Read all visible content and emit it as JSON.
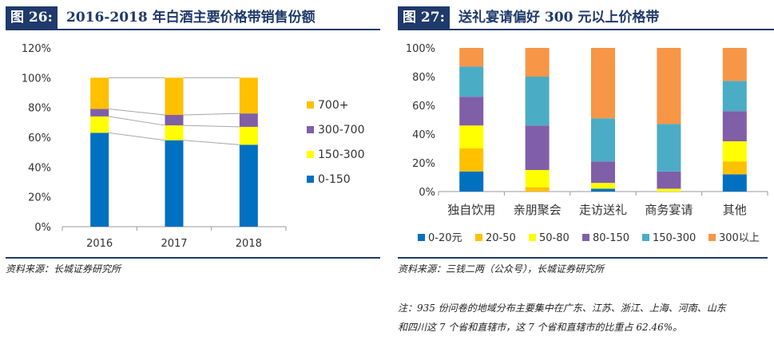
{
  "left": {
    "fig_label": "图 26:",
    "title": "2016-2018 年白酒主要价格带销售份额",
    "source": "资料来源：长城证券研究所"
  },
  "right": {
    "fig_label": "图 27:",
    "title": "送礼宴请偏好 300 元以上价格带",
    "source": "资料来源：三钱二两（公众号），长城证券研究所",
    "note": [
      "注：935 份问卷的地域分布主要集中在广东、江苏、浙江、上海、河南、山东",
      "和四川这 7 个省和直辖市，这 7 个省和直辖市的比重占 62.46%。"
    ]
  },
  "chart_data": [
    {
      "type": "bar",
      "stacked": true,
      "categories": [
        "2016",
        "2017",
        "2018"
      ],
      "series": [
        {
          "name": "0-150",
          "color": "#0070c0",
          "values": [
            63,
            58,
            55
          ]
        },
        {
          "name": "150-300",
          "color": "#ffff00",
          "values": [
            11,
            10,
            12
          ]
        },
        {
          "name": "300-700",
          "color": "#7f5fa8",
          "values": [
            5,
            7,
            9
          ]
        },
        {
          "name": "700+",
          "color": "#ffc000",
          "values": [
            21,
            25,
            24
          ]
        }
      ],
      "yticks": [
        "0%",
        "20%",
        "40%",
        "60%",
        "80%",
        "100%",
        "120%"
      ],
      "ylim": [
        0,
        120
      ],
      "legend": "right",
      "connector_lines": true
    },
    {
      "type": "bar",
      "stacked": true,
      "percent": true,
      "categories": [
        "独自饮用",
        "亲朋聚会",
        "走访送礼",
        "商务宴请",
        "其他"
      ],
      "series": [
        {
          "name": "0-20元",
          "color": "#0070c0",
          "values": [
            14,
            0,
            2,
            0,
            12
          ]
        },
        {
          "name": "20-50",
          "color": "#ffc000",
          "values": [
            16,
            3,
            0,
            0,
            9
          ]
        },
        {
          "name": "50-80",
          "color": "#ffff00",
          "values": [
            16,
            12,
            4,
            2,
            14
          ]
        },
        {
          "name": "80-150",
          "color": "#7f5fa8",
          "values": [
            20,
            31,
            15,
            12,
            21
          ]
        },
        {
          "name": "150-300",
          "color": "#4bacc6",
          "values": [
            21,
            34,
            30,
            33,
            21
          ]
        },
        {
          "name": "300以上",
          "color": "#f79646",
          "values": [
            13,
            20,
            49,
            53,
            23
          ]
        }
      ],
      "yticks": [
        "0%",
        "20%",
        "40%",
        "60%",
        "80%",
        "100%"
      ],
      "ylim": [
        0,
        100
      ],
      "legend": "bottom"
    }
  ]
}
